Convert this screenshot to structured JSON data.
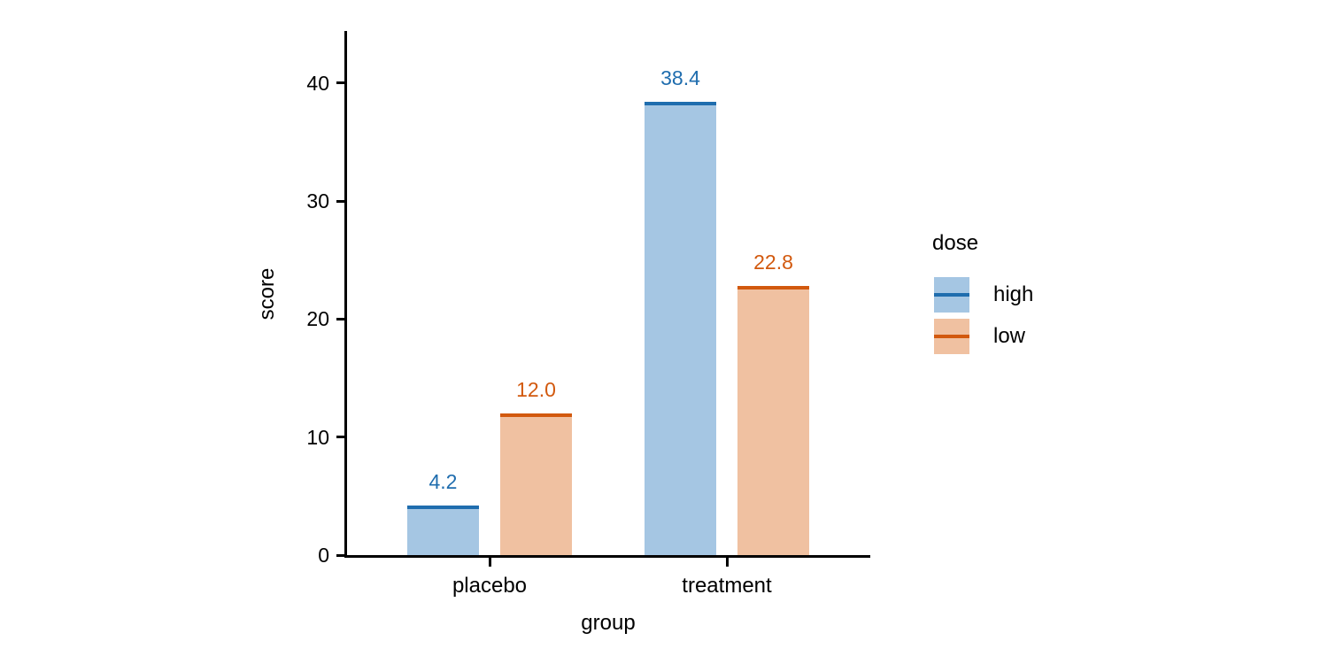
{
  "chart_data": {
    "type": "bar",
    "title": "",
    "xlabel": "group",
    "ylabel": "score",
    "categories": [
      "placebo",
      "treatment"
    ],
    "series": [
      {
        "name": "high",
        "values": [
          4.2,
          38.4
        ],
        "value_labels": [
          "4.2",
          "38.4"
        ],
        "fill_color": "#a5c6e3",
        "line_color": "#1f6dae"
      },
      {
        "name": "low",
        "values": [
          12.0,
          22.8
        ],
        "value_labels": [
          "12.0",
          "22.8"
        ],
        "fill_color": "#f0c1a1",
        "line_color": "#d2590e"
      }
    ],
    "ylim": [
      0,
      44.4
    ],
    "yticks": [
      0,
      10,
      20,
      30,
      40
    ],
    "ytick_labels": [
      "0",
      "10",
      "20",
      "30",
      "40"
    ],
    "legend": {
      "title": "dose",
      "position": "right",
      "items": [
        "high",
        "low"
      ]
    },
    "grid": false,
    "axis_color": "#000000",
    "background_color": "#ffffff"
  }
}
